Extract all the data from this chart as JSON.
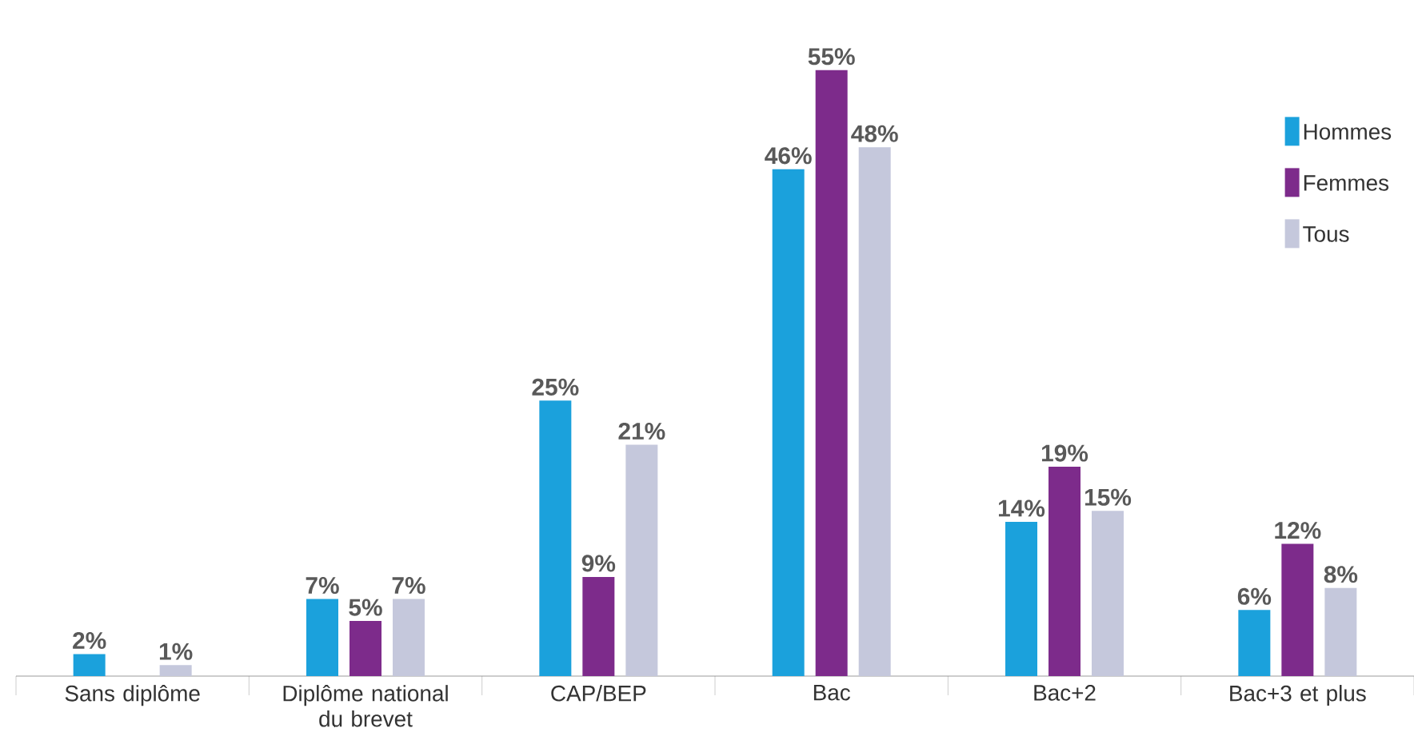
{
  "chart_data": {
    "type": "bar",
    "categories": [
      "Sans diplôme",
      "Diplôme national du brevet",
      "CAP/BEP",
      "Bac",
      "Bac+2",
      "Bac+3 et plus"
    ],
    "series": [
      {
        "name": "Hommes",
        "color": "#1ba1dc",
        "values": [
          2,
          7,
          25,
          46,
          14,
          6
        ],
        "value_labels": [
          "2%",
          "7%",
          "25%",
          "46%",
          "14%",
          "6%"
        ]
      },
      {
        "name": "Femmes",
        "color": "#7d2b8b",
        "values": [
          null,
          5,
          9,
          55,
          19,
          12
        ],
        "value_labels": [
          null,
          "5%",
          "9%",
          "55%",
          "19%",
          "12%"
        ]
      },
      {
        "name": "Tous",
        "color": "#c5c8dc",
        "values": [
          1,
          7,
          21,
          48,
          15,
          8
        ],
        "value_labels": [
          "1%",
          "7%",
          "21%",
          "48%",
          "15%",
          "8%"
        ]
      }
    ],
    "legend": "top right"
  }
}
